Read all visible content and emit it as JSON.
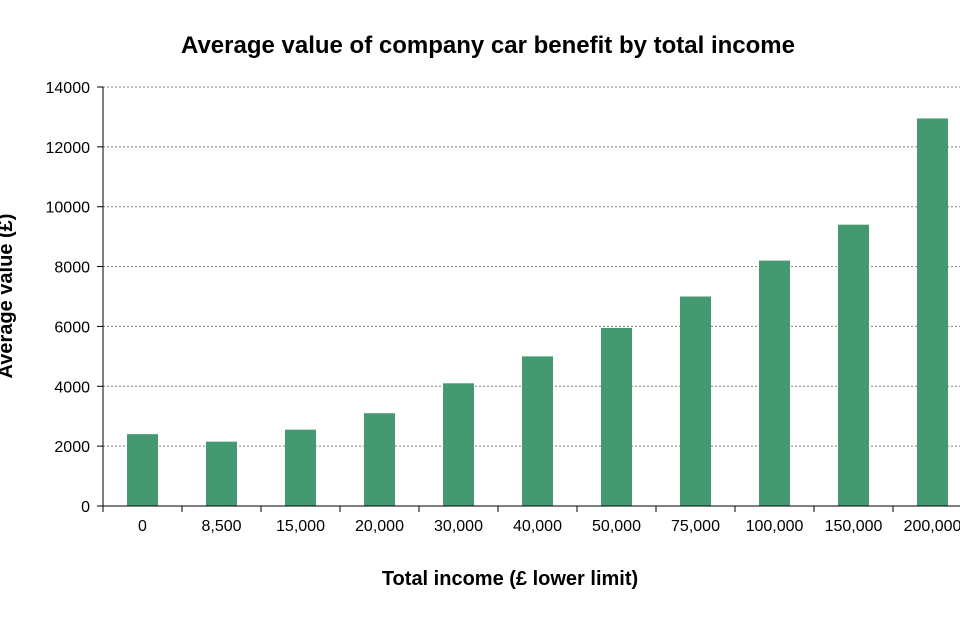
{
  "chart_data": {
    "type": "bar",
    "title": "Average value of company car benefit by total income",
    "xlabel": "Total income (£ lower limit)",
    "ylabel": "Average value (£)",
    "categories": [
      "0",
      "8,500",
      "15,000",
      "20,000",
      "30,000",
      "40,000",
      "50,000",
      "75,000",
      "100,000",
      "150,000",
      "200,000"
    ],
    "values": [
      2400,
      2150,
      2550,
      3100,
      4100,
      5000,
      5950,
      7000,
      8200,
      9400,
      12950
    ],
    "ylim": [
      0,
      14000
    ],
    "yticks": [
      0,
      2000,
      4000,
      6000,
      8000,
      10000,
      12000,
      14000
    ],
    "grid": true,
    "bar_color": "#449970"
  }
}
